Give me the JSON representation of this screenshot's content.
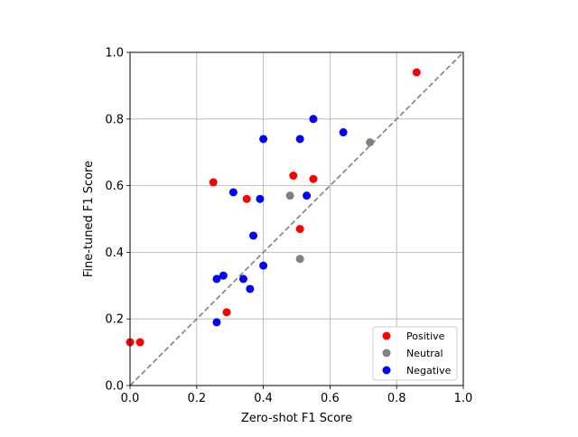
{
  "chart_data": {
    "type": "scatter",
    "title": "",
    "xlabel": "Zero-shot F1 Score",
    "ylabel": "Fine-tuned F1 Score",
    "xlim": [
      0.0,
      1.0
    ],
    "ylim": [
      0.0,
      1.0
    ],
    "x_ticks": [
      0.0,
      0.2,
      0.4,
      0.6,
      0.8,
      1.0
    ],
    "y_ticks": [
      0.0,
      0.2,
      0.4,
      0.6,
      0.8,
      1.0
    ],
    "x_tick_labels": [
      "0.0",
      "0.2",
      "0.4",
      "0.6",
      "0.8",
      "1.0"
    ],
    "y_tick_labels": [
      "0.0",
      "0.2",
      "0.4",
      "0.6",
      "0.8",
      "1.0"
    ],
    "grid": true,
    "legend_position": "bottom-right",
    "reference_line": {
      "type": "y=x",
      "style": "dashed",
      "color": "#808080"
    },
    "series": [
      {
        "name": "Positive",
        "color": "#ff0000",
        "points": [
          {
            "x": 0.0,
            "y": 0.13
          },
          {
            "x": 0.03,
            "y": 0.13
          },
          {
            "x": 0.25,
            "y": 0.61
          },
          {
            "x": 0.29,
            "y": 0.22
          },
          {
            "x": 0.35,
            "y": 0.56
          },
          {
            "x": 0.49,
            "y": 0.63
          },
          {
            "x": 0.51,
            "y": 0.47
          },
          {
            "x": 0.55,
            "y": 0.62
          },
          {
            "x": 0.86,
            "y": 0.94
          }
        ]
      },
      {
        "name": "Neutral",
        "color": "#808080",
        "points": [
          {
            "x": 0.48,
            "y": 0.57
          },
          {
            "x": 0.51,
            "y": 0.38
          },
          {
            "x": 0.72,
            "y": 0.73
          }
        ]
      },
      {
        "name": "Negative",
        "color": "#0000ff",
        "points": [
          {
            "x": 0.26,
            "y": 0.32
          },
          {
            "x": 0.26,
            "y": 0.19
          },
          {
            "x": 0.28,
            "y": 0.33
          },
          {
            "x": 0.31,
            "y": 0.58
          },
          {
            "x": 0.34,
            "y": 0.32
          },
          {
            "x": 0.36,
            "y": 0.29
          },
          {
            "x": 0.37,
            "y": 0.45
          },
          {
            "x": 0.39,
            "y": 0.56
          },
          {
            "x": 0.4,
            "y": 0.74
          },
          {
            "x": 0.4,
            "y": 0.36
          },
          {
            "x": 0.51,
            "y": 0.74
          },
          {
            "x": 0.53,
            "y": 0.57
          },
          {
            "x": 0.55,
            "y": 0.8
          },
          {
            "x": 0.64,
            "y": 0.76
          }
        ]
      }
    ]
  }
}
